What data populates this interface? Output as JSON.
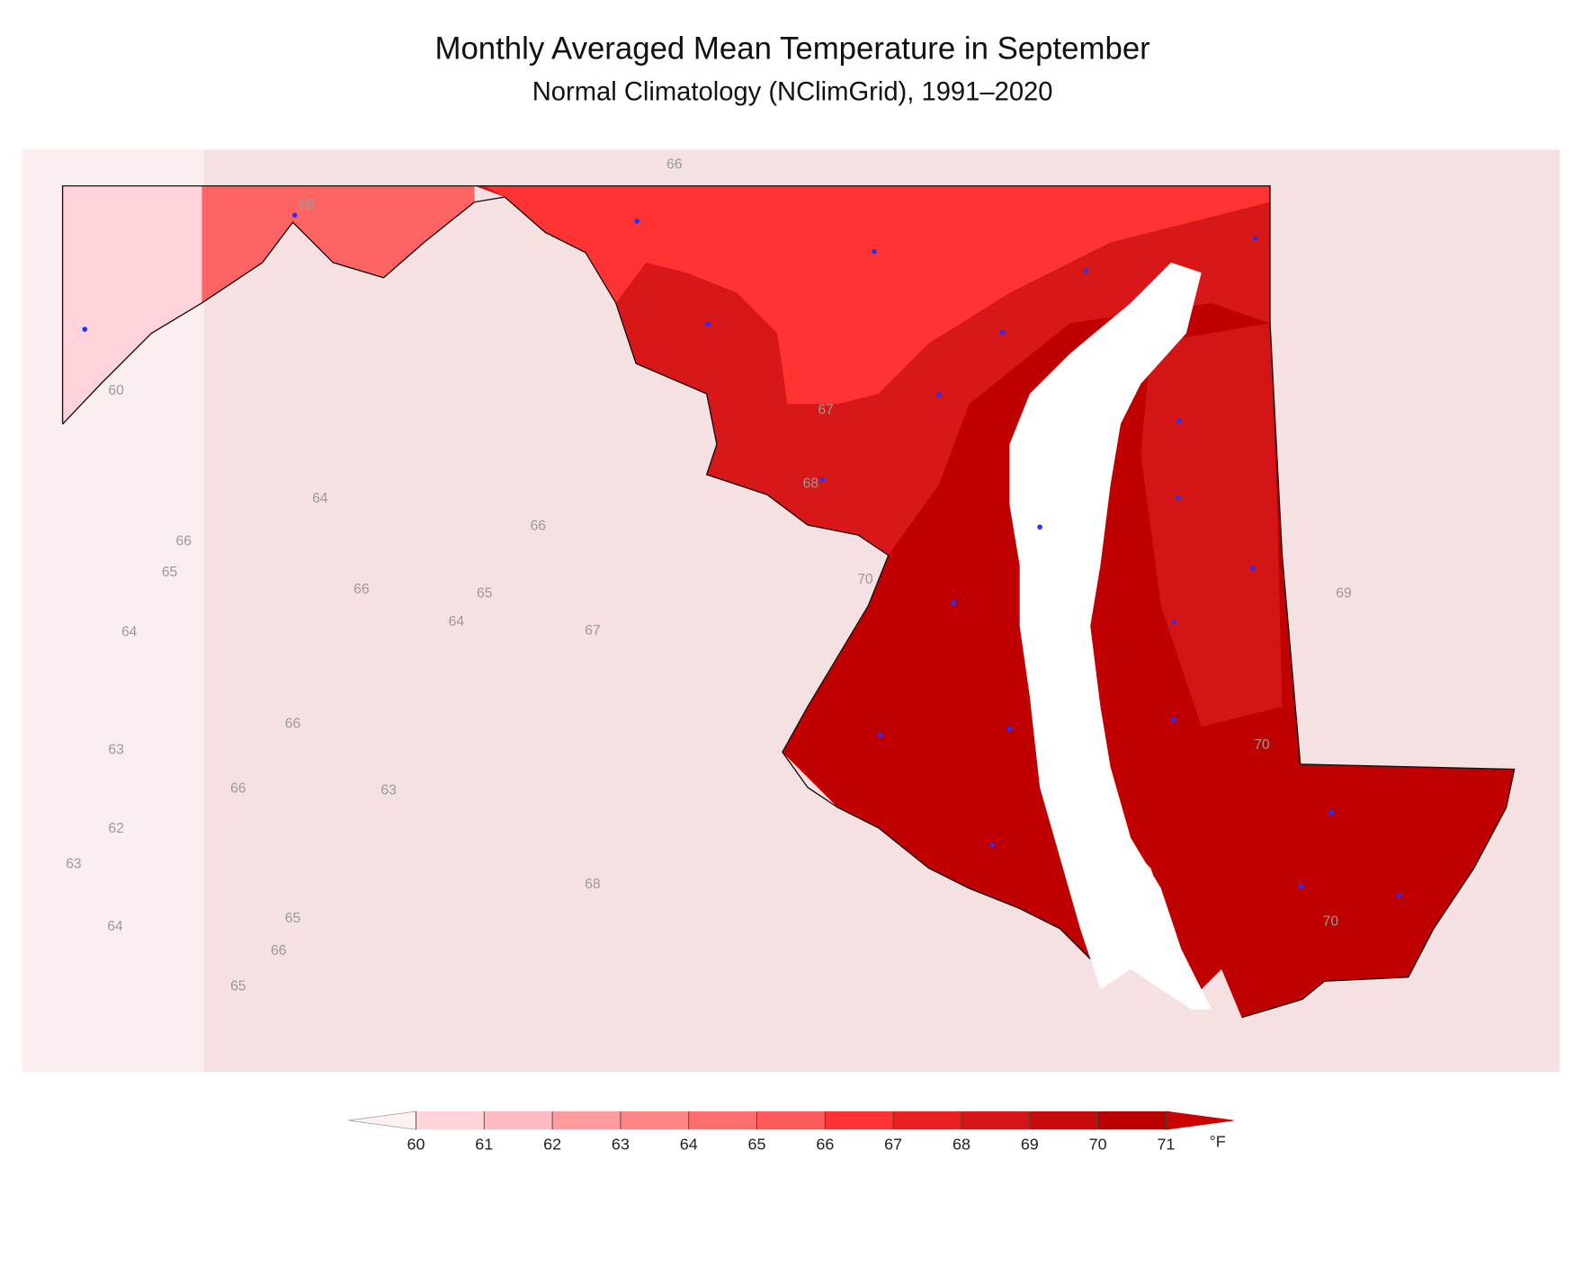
{
  "header": {
    "title": "Monthly Averaged Mean Temperature in September",
    "subtitle": "Normal Climatology (NClimGrid), 1991–2020"
  },
  "colorbar": {
    "ticks": [
      60,
      61,
      62,
      63,
      64,
      65,
      66,
      67,
      68,
      69,
      70,
      71
    ],
    "unit": "°F",
    "colors": [
      "#ffd3d9",
      "#ffbac2",
      "#ff9a9e",
      "#ff8585",
      "#ff6e6e",
      "#ff5a5a",
      "#ff3333",
      "#e82020",
      "#d41515",
      "#c80a0a",
      "#b80000"
    ],
    "under_color": "#fff0f2",
    "over_color": "#cc0000"
  },
  "contour_labels": [
    66,
    66,
    60,
    67,
    68,
    64,
    66,
    66,
    65,
    70,
    66,
    65,
    69,
    64,
    64,
    67,
    66,
    70,
    63,
    66,
    63,
    62,
    63,
    68,
    70,
    65,
    64,
    66,
    65
  ]
}
